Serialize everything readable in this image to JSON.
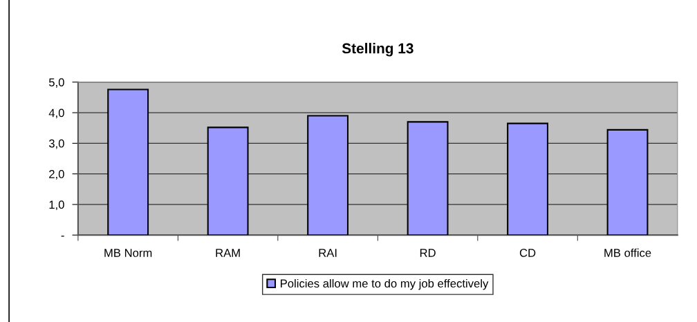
{
  "chart_data": {
    "type": "bar",
    "title": "Stelling 13",
    "categories": [
      "MB Norm",
      "RAM",
      "RAI",
      "RD",
      "CD",
      "MB office"
    ],
    "series": [
      {
        "name": "Policies allow me to do my job effectively",
        "color": "#9999ff",
        "values": [
          4.76,
          3.52,
          3.9,
          3.7,
          3.65,
          3.44
        ]
      }
    ],
    "ylim": [
      0,
      5
    ],
    "yticks": [
      {
        "value": 0,
        "label": "-"
      },
      {
        "value": 1,
        "label": "1,0"
      },
      {
        "value": 2,
        "label": "2,0"
      },
      {
        "value": 3,
        "label": "3,0"
      },
      {
        "value": 4,
        "label": "4,0"
      },
      {
        "value": 5,
        "label": "5,0"
      }
    ],
    "grid": "y",
    "legend": "bottom"
  }
}
